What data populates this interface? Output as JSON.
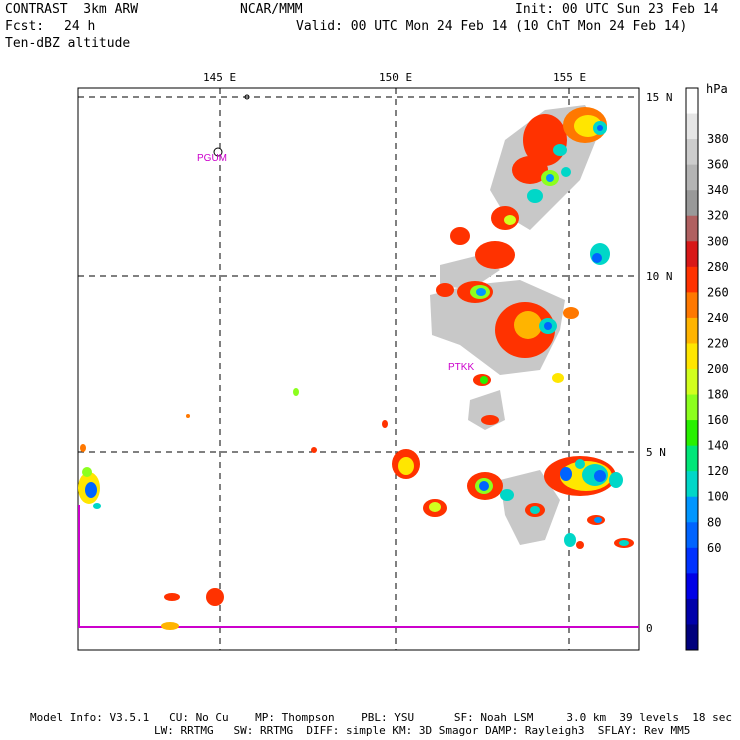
{
  "header": {
    "title": "CONTRAST  3km ARW",
    "forecast_label": "Fcst:",
    "forecast_hours": "24 h",
    "field": "Ten-dBZ altitude",
    "center": "NCAR/MMM",
    "init": "Init: 00 UTC Sun 23 Feb 14",
    "valid": "Valid: 00 UTC Mon 24 Feb 14 (10 ChT Mon 24 Feb 14)"
  },
  "axes": {
    "longitude_labels": [
      "145 E",
      "150 E",
      "155 E"
    ],
    "latitude_labels": [
      "15 N",
      "10 N",
      "5 N",
      "0"
    ]
  },
  "stations": [
    "PGUM",
    "PTKK"
  ],
  "legend": {
    "unit": "hPa",
    "levels": [
      "380",
      "360",
      "340",
      "320",
      "300",
      "280",
      "260",
      "240",
      "220",
      "200",
      "180",
      "160",
      "140",
      "120",
      "100",
      "80",
      "60"
    ],
    "colors": [
      "#ffffff",
      "#e6e6e6",
      "#cccccc",
      "#b4b4b4",
      "#999999",
      "#b06060",
      "#d81818",
      "#ff3200",
      "#ff7800",
      "#ffb400",
      "#ffe600",
      "#d2ff1e",
      "#8cff1e",
      "#28f000",
      "#00e678",
      "#00d7c8",
      "#0096ff",
      "#0064ff",
      "#0032ff",
      "#0000e6",
      "#0000aa",
      "#00007d"
    ]
  },
  "footer": {
    "line1": "Model Info: V3.5.1   CU: No Cu    MP: Thompson    PBL: YSU      SF: Noah LSM     3.0 km  39 levels  18 sec",
    "line2": "LW: RRTMG   SW: RRTMG  DIFF: simple KM: 3D Smagor DAMP: Rayleigh3  SFLAY: Rev MM5"
  }
}
